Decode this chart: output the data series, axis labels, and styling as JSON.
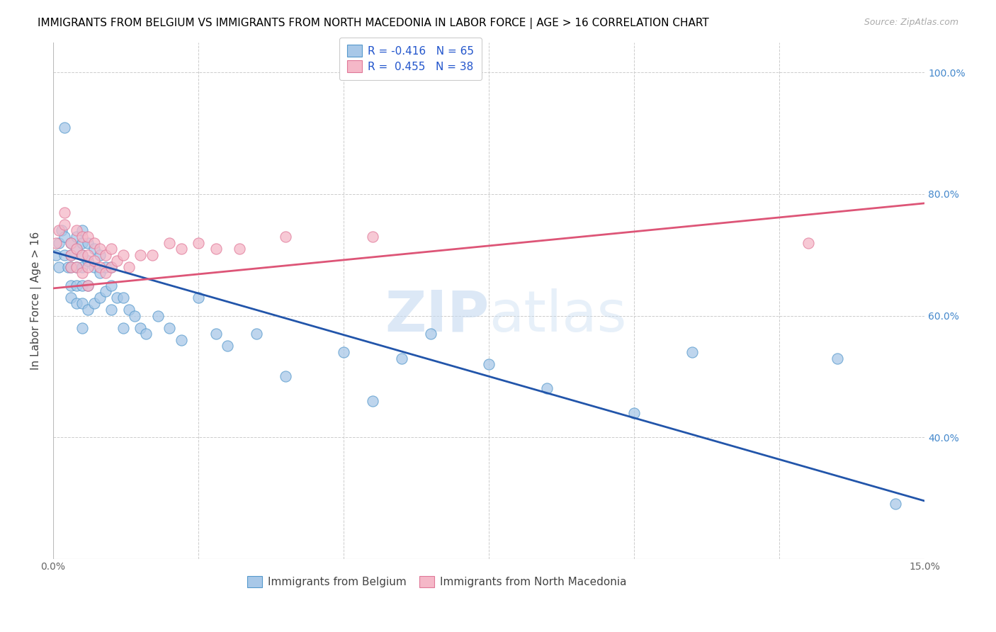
{
  "title": "IMMIGRANTS FROM BELGIUM VS IMMIGRANTS FROM NORTH MACEDONIA IN LABOR FORCE | AGE > 16 CORRELATION CHART",
  "source": "Source: ZipAtlas.com",
  "ylabel": "In Labor Force | Age > 16",
  "xlim": [
    0.0,
    0.15
  ],
  "ylim": [
    0.2,
    1.05
  ],
  "belgium_color": "#a8c8e8",
  "belgium_edge_color": "#5599cc",
  "belgium_line_color": "#2255aa",
  "nMacedonia_color": "#f5b8c8",
  "nMacedonia_edge_color": "#e07898",
  "nMacedonia_line_color": "#dd5577",
  "legend_text1": "R = -0.416   N = 65",
  "legend_text2": "R =  0.455   N = 38",
  "watermark_zip": "ZIP",
  "watermark_atlas": "atlas",
  "legend_label_belgium": "Immigrants from Belgium",
  "legend_label_nMacedonia": "Immigrants from North Macedonia",
  "ytick_vals": [
    0.4,
    0.6,
    0.8,
    1.0
  ],
  "ytick_labels": [
    "40.0%",
    "60.0%",
    "80.0%",
    "100.0%"
  ],
  "xtick_vals": [
    0.0,
    0.025,
    0.05,
    0.075,
    0.1,
    0.125,
    0.15
  ],
  "xtick_labels": [
    "0.0%",
    "",
    "",
    "",
    "",
    "",
    "15.0%"
  ],
  "title_fontsize": 11,
  "tick_fontsize": 10,
  "ylabel_fontsize": 11,
  "belgium_x": [
    0.0005,
    0.001,
    0.001,
    0.0015,
    0.002,
    0.002,
    0.002,
    0.0025,
    0.003,
    0.003,
    0.003,
    0.003,
    0.003,
    0.004,
    0.004,
    0.004,
    0.004,
    0.004,
    0.005,
    0.005,
    0.005,
    0.005,
    0.005,
    0.005,
    0.005,
    0.006,
    0.006,
    0.006,
    0.006,
    0.007,
    0.007,
    0.007,
    0.008,
    0.008,
    0.008,
    0.009,
    0.009,
    0.01,
    0.01,
    0.01,
    0.011,
    0.012,
    0.012,
    0.013,
    0.014,
    0.015,
    0.016,
    0.018,
    0.02,
    0.022,
    0.025,
    0.028,
    0.03,
    0.035,
    0.04,
    0.05,
    0.055,
    0.06,
    0.065,
    0.075,
    0.085,
    0.1,
    0.11,
    0.135,
    0.145
  ],
  "belgium_y": [
    0.7,
    0.72,
    0.68,
    0.74,
    0.91,
    0.73,
    0.7,
    0.68,
    0.72,
    0.7,
    0.68,
    0.65,
    0.63,
    0.73,
    0.71,
    0.68,
    0.65,
    0.62,
    0.74,
    0.72,
    0.7,
    0.68,
    0.65,
    0.62,
    0.58,
    0.72,
    0.69,
    0.65,
    0.61,
    0.71,
    0.68,
    0.62,
    0.7,
    0.67,
    0.63,
    0.68,
    0.64,
    0.68,
    0.65,
    0.61,
    0.63,
    0.63,
    0.58,
    0.61,
    0.6,
    0.58,
    0.57,
    0.6,
    0.58,
    0.56,
    0.63,
    0.57,
    0.55,
    0.57,
    0.5,
    0.54,
    0.46,
    0.53,
    0.57,
    0.52,
    0.48,
    0.44,
    0.54,
    0.53,
    0.29
  ],
  "nMacedonia_x": [
    0.0005,
    0.001,
    0.002,
    0.002,
    0.003,
    0.003,
    0.003,
    0.004,
    0.004,
    0.004,
    0.005,
    0.005,
    0.005,
    0.006,
    0.006,
    0.006,
    0.006,
    0.007,
    0.007,
    0.008,
    0.008,
    0.009,
    0.009,
    0.01,
    0.01,
    0.011,
    0.012,
    0.013,
    0.015,
    0.017,
    0.02,
    0.022,
    0.025,
    0.028,
    0.032,
    0.04,
    0.055,
    0.13
  ],
  "nMacedonia_y": [
    0.72,
    0.74,
    0.77,
    0.75,
    0.72,
    0.7,
    0.68,
    0.74,
    0.71,
    0.68,
    0.73,
    0.7,
    0.67,
    0.73,
    0.7,
    0.68,
    0.65,
    0.72,
    0.69,
    0.71,
    0.68,
    0.7,
    0.67,
    0.71,
    0.68,
    0.69,
    0.7,
    0.68,
    0.7,
    0.7,
    0.72,
    0.71,
    0.72,
    0.71,
    0.71,
    0.73,
    0.73,
    0.72
  ],
  "bel_line_x": [
    0.0,
    0.15
  ],
  "bel_line_y": [
    0.705,
    0.295
  ],
  "mac_line_x": [
    0.0,
    0.15
  ],
  "mac_line_y": [
    0.645,
    0.785
  ]
}
